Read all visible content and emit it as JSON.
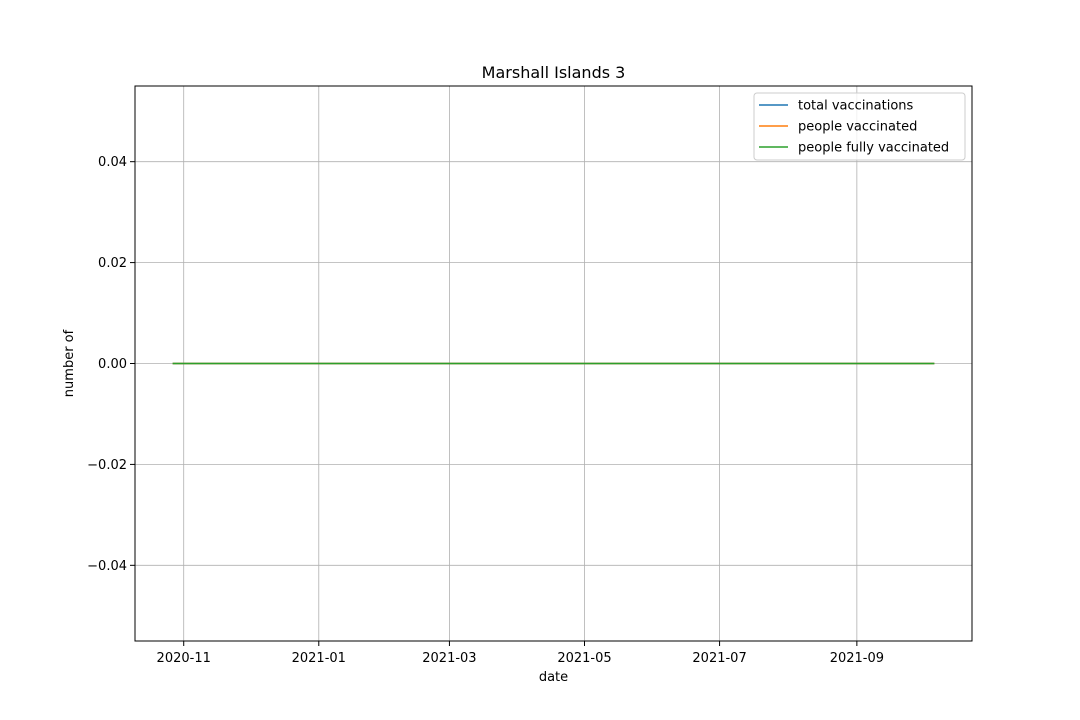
{
  "chart_data": {
    "type": "line",
    "title": "Marshall Islands 3",
    "xlabel": "date",
    "ylabel": "number of",
    "x_ticks": [
      "2020-11-01",
      "2021-01-01",
      "2021-03-01",
      "2021-05-01",
      "2021-07-01",
      "2021-09-01"
    ],
    "x_tick_labels": [
      "2020-11",
      "2021-01",
      "2021-03",
      "2021-05",
      "2021-07",
      "2021-09"
    ],
    "xlim": [
      "2020-10-10",
      "2021-10-23"
    ],
    "y_ticks": [
      -0.04,
      -0.02,
      0.0,
      0.02,
      0.04
    ],
    "y_tick_labels": [
      "−0.04",
      "−0.02",
      "0.00",
      "0.02",
      "0.04"
    ],
    "ylim": [
      -0.055,
      0.055
    ],
    "grid": true,
    "legend_position": "top-right",
    "series": [
      {
        "name": "total vaccinations",
        "color": "#1f77b4",
        "x": [
          "2020-10-27",
          "2021-10-06"
        ],
        "y": [
          0,
          0
        ]
      },
      {
        "name": "people vaccinated",
        "color": "#ff7f0e",
        "x": [
          "2020-10-27",
          "2021-10-06"
        ],
        "y": [
          0,
          0
        ]
      },
      {
        "name": "people fully vaccinated",
        "color": "#2ca02c",
        "x": [
          "2020-10-27",
          "2021-10-06"
        ],
        "y": [
          0,
          0
        ]
      }
    ]
  }
}
